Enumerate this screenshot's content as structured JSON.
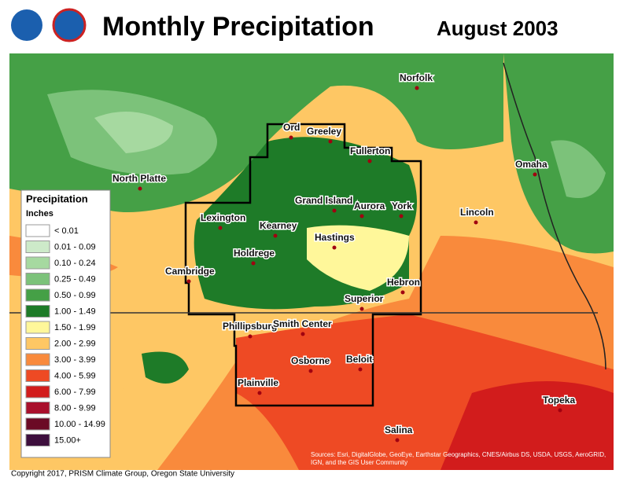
{
  "header": {
    "title": "Monthly Precipitation",
    "date": "August 2003"
  },
  "legend": {
    "title": "Precipitation",
    "units": "Inches",
    "items": [
      {
        "label": "< 0.01",
        "color": "#ffffff"
      },
      {
        "label": "0.01 - 0.09",
        "color": "#cdeac9"
      },
      {
        "label": "0.10 - 0.24",
        "color": "#a6d9a0"
      },
      {
        "label": "0.25 - 0.49",
        "color": "#7cc27a"
      },
      {
        "label": "0.50 - 0.99",
        "color": "#45a046"
      },
      {
        "label": "1.00 - 1.49",
        "color": "#1e7b28"
      },
      {
        "label": "1.50 - 1.99",
        "color": "#fff79a"
      },
      {
        "label": "2.00 - 2.99",
        "color": "#fec764"
      },
      {
        "label": "3.00 - 3.99",
        "color": "#f98a3c"
      },
      {
        "label": "4.00 - 5.99",
        "color": "#ee4a24"
      },
      {
        "label": "6.00 - 7.99",
        "color": "#d21c1c"
      },
      {
        "label": "8.00 - 9.99",
        "color": "#a9102c"
      },
      {
        "label": "10.00 - 14.99",
        "color": "#6b0a25"
      },
      {
        "label": "15.00+",
        "color": "#3d0f3d"
      }
    ]
  },
  "cities": [
    "North Platte",
    "Lexington",
    "Kearney",
    "Holdrege",
    "Cambridge",
    "Ord",
    "Greeley",
    "Fullerton",
    "Grand Island",
    "Aurora",
    "York",
    "Hastings",
    "Hebron",
    "Superior",
    "Phillipsburg",
    "Smith Center",
    "Osborne",
    "Beloit",
    "Plainville",
    "Norfolk",
    "Omaha",
    "Lincoln",
    "Topeka",
    "Salina"
  ],
  "footer": {
    "copyright": "Copyright 2017, PRISM Climate Group, Oregon State University",
    "source": "Sources: Esri, DigitalGlobe, GeoEye, Earthstar Geographics, CNES/Airbus DS, USDA, USGS, AeroGRID, IGN, and the GIS User Community"
  }
}
